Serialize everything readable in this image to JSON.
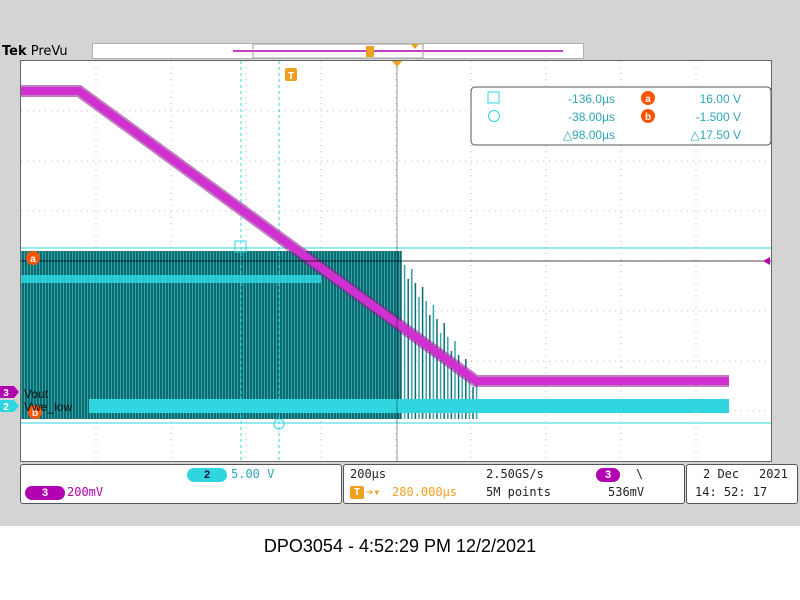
{
  "header": {
    "brand_bold": "Tek",
    "brand_mode": "PreVu"
  },
  "markers": {
    "trigger_icon": "T",
    "cursor_a_label": "a",
    "cursor_b_label": "b",
    "ch3_label": "3",
    "ch2_label": "2",
    "ch3_name": "Vout",
    "ch2_name": "Vwe_low"
  },
  "readout": {
    "t1": "-136.0µs",
    "t2": "-38.00µs",
    "dt": "△98.00µs",
    "va": "16.00 V",
    "vb": "-1.500 V",
    "dv": "△17.50 V"
  },
  "bottom": {
    "ch2_badge": "2",
    "ch2_scale": "5.00 V",
    "ch3_badge": "3",
    "ch3_scale": "200mV",
    "timebase": "200µs",
    "trig_pos": "280.000µs",
    "sample_rate": "2.50GS/s",
    "record_len": "5M points",
    "trig_ch": "3",
    "trig_slope": "\\",
    "trig_level": "536mV",
    "date_day": "2 Dec",
    "date_year": "2021",
    "clock": "14: 52: 17"
  },
  "footer": {
    "caption": "DPO3054 - 4:52:29 PM    12/2/2021"
  },
  "colors": {
    "ch2": "#2fd6e0",
    "ch2_dark": "#0e5d63",
    "ch3": "#c020c0",
    "trigger": "#f0a020",
    "cursor": "#ff5500"
  }
}
